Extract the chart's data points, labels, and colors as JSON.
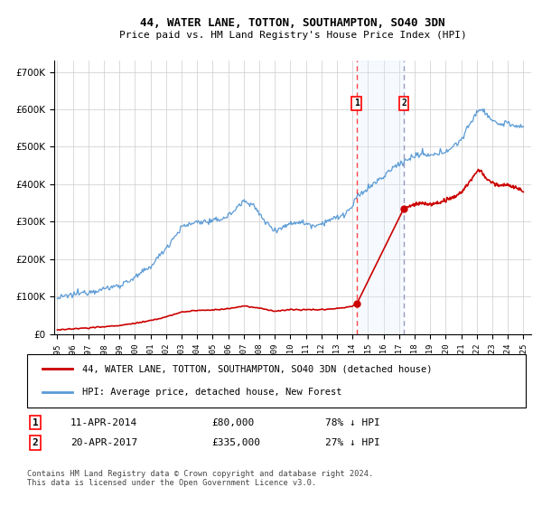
{
  "title": "44, WATER LANE, TOTTON, SOUTHAMPTON, SO40 3DN",
  "subtitle": "Price paid vs. HM Land Registry's House Price Index (HPI)",
  "legend_line1": "44, WATER LANE, TOTTON, SOUTHAMPTON, SO40 3DN (detached house)",
  "legend_line2": "HPI: Average price, detached house, New Forest",
  "annotation1_date": "11-APR-2014",
  "annotation1_price": "£80,000",
  "annotation1_hpi": "78% ↓ HPI",
  "annotation2_date": "20-APR-2017",
  "annotation2_price": "£335,000",
  "annotation2_hpi": "27% ↓ HPI",
  "footnote": "Contains HM Land Registry data © Crown copyright and database right 2024.\nThis data is licensed under the Open Government Licence v3.0.",
  "hpi_color": "#5b9bd5",
  "price_color": "#cc0000",
  "marker_color": "#cc0000",
  "vline1_color": "#ff4444",
  "vline2_color": "#aaaacc",
  "shade_color": "#ddeeff",
  "background_color": "#ffffff",
  "grid_color": "#cccccc",
  "ylim": [
    0,
    730000
  ],
  "yticks": [
    0,
    100000,
    200000,
    300000,
    400000,
    500000,
    600000,
    700000
  ],
  "transaction1_x": 2014.27,
  "transaction1_y": 80000,
  "transaction2_x": 2017.3,
  "transaction2_y": 335000,
  "xmin": 1994.8,
  "xmax": 2025.5
}
